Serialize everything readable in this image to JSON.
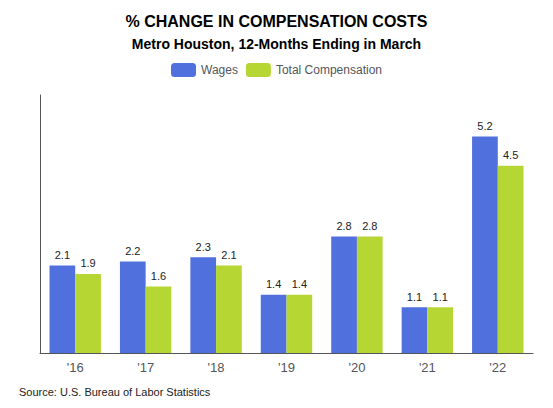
{
  "chart_data": {
    "type": "bar",
    "title": "% CHANGE IN COMPENSATION COSTS",
    "subtitle": "Metro Houston, 12-Months Ending in March",
    "categories": [
      "'16",
      "'17",
      "'18",
      "'19",
      "'20",
      "'21",
      "'22"
    ],
    "series": [
      {
        "name": "Wages",
        "values": [
          2.1,
          2.2,
          2.3,
          1.4,
          2.8,
          1.1,
          5.2
        ]
      },
      {
        "name": "Total Compensation",
        "values": [
          1.9,
          1.6,
          2.1,
          1.4,
          2.8,
          1.1,
          4.5
        ]
      }
    ],
    "ylim": [
      0,
      6.2
    ],
    "yticks": [],
    "grid": false,
    "legend": "top",
    "data_labels": true,
    "tick_labels": "x",
    "annotations": [
      "Source: U.S. Bureau of Labor Statistics"
    ]
  }
}
